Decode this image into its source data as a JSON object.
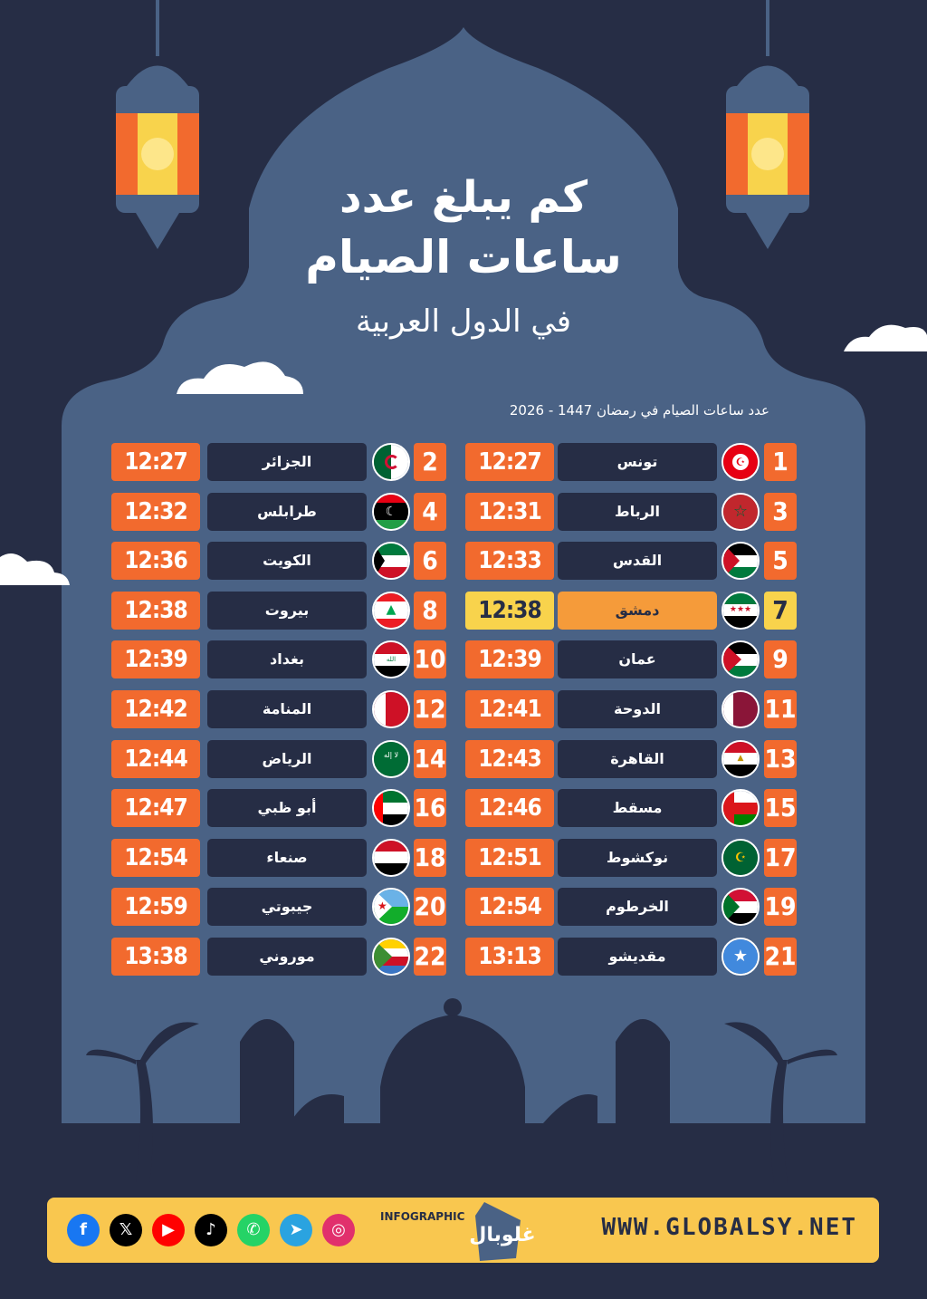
{
  "title": {
    "line1": "كم يبلغ عدد",
    "line2": "ساعات الصيام",
    "line3": "في الدول العربية"
  },
  "subtitle": "عدد ساعات الصيام في رمضان 1447 - 2026",
  "left_column": [
    {
      "num": "2",
      "city": "الجزائر",
      "time": "12:27",
      "flag": "algeria-flag"
    },
    {
      "num": "4",
      "city": "طرابلس",
      "time": "12:32",
      "flag": "libya-flag"
    },
    {
      "num": "6",
      "city": "الكويت",
      "time": "12:36",
      "flag": "kuwait-flag"
    },
    {
      "num": "8",
      "city": "بيروت",
      "time": "12:38",
      "flag": "lebanon-flag"
    },
    {
      "num": "10",
      "city": "بغداد",
      "time": "12:39",
      "flag": "iraq-flag"
    },
    {
      "num": "12",
      "city": "المنامة",
      "time": "12:42",
      "flag": "bahrain-flag"
    },
    {
      "num": "14",
      "city": "الرياض",
      "time": "12:44",
      "flag": "saudi-flag"
    },
    {
      "num": "16",
      "city": "أبو ظبي",
      "time": "12:47",
      "flag": "uae-flag"
    },
    {
      "num": "18",
      "city": "صنعاء",
      "time": "12:54",
      "flag": "yemen-flag"
    },
    {
      "num": "20",
      "city": "جيبوتي",
      "time": "12:59",
      "flag": "djibouti-flag"
    },
    {
      "num": "22",
      "city": "موروني",
      "time": "13:38",
      "flag": "comoros-flag"
    }
  ],
  "right_column": [
    {
      "num": "1",
      "city": "تونس",
      "time": "12:27",
      "flag": "tunisia-flag"
    },
    {
      "num": "3",
      "city": "الرباط",
      "time": "12:31",
      "flag": "morocco-flag"
    },
    {
      "num": "5",
      "city": "القدس",
      "time": "12:33",
      "flag": "palestine-flag"
    },
    {
      "num": "7",
      "city": "دمشق",
      "time": "12:38",
      "flag": "syria-flag",
      "highlight": true
    },
    {
      "num": "9",
      "city": "عمان",
      "time": "12:39",
      "flag": "jordan-flag"
    },
    {
      "num": "11",
      "city": "الدوحة",
      "time": "12:41",
      "flag": "qatar-flag"
    },
    {
      "num": "13",
      "city": "القاهرة",
      "time": "12:43",
      "flag": "egypt-flag"
    },
    {
      "num": "15",
      "city": "مسقط",
      "time": "12:46",
      "flag": "oman-flag"
    },
    {
      "num": "17",
      "city": "نوكشوط",
      "time": "12:51",
      "flag": "mauritania-flag"
    },
    {
      "num": "19",
      "city": "الخرطوم",
      "time": "12:54",
      "flag": "sudan-flag"
    },
    {
      "num": "21",
      "city": "مقديشو",
      "time": "13:13",
      "flag": "somalia-flag"
    }
  ],
  "footer": {
    "infographic_label": "INFOGRAPHIC",
    "brand": "غلوبال",
    "website": "WWW.GLOBALSY.NET",
    "social_icons": [
      "instagram-icon",
      "telegram-icon",
      "whatsapp-icon",
      "tiktok-icon",
      "youtube-icon",
      "x-icon",
      "facebook-icon"
    ]
  },
  "colors": {
    "background": "#262d45",
    "panel": "#4a6285",
    "accent_orange": "#f26a2e",
    "highlight_yellow": "#f8d34c",
    "footer_yellow": "#f9c74f"
  }
}
